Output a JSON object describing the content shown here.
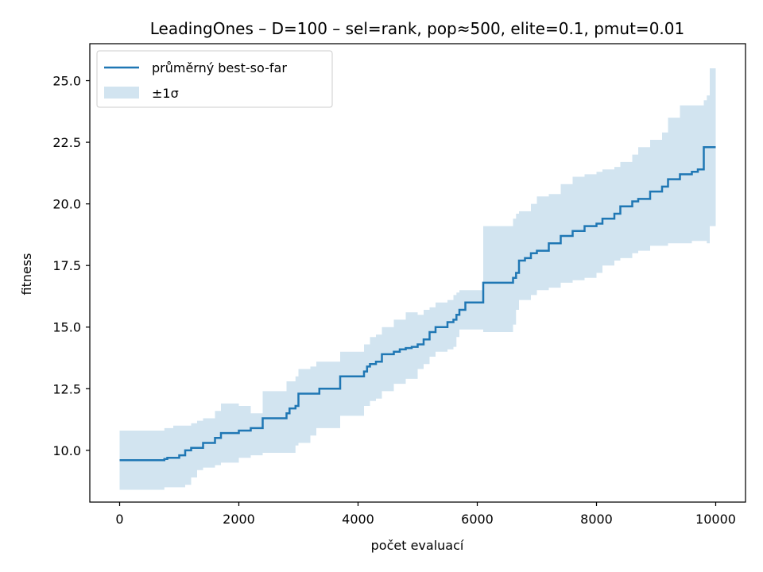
{
  "colors": {
    "line": "#1f77b4",
    "band": "#1f77b4",
    "band_opacity": 0.2,
    "axes": "#000000",
    "background": "#ffffff"
  },
  "chart_data": {
    "type": "line",
    "title": "LeadingOnes – D=100 – sel=rank, pop≈500, elite=0.1, pmut=0.01",
    "xlabel": "počet evaluací",
    "ylabel": "fitness",
    "xlim": [
      -500,
      10500
    ],
    "ylim": [
      7.9,
      26.5
    ],
    "xticks": [
      0,
      2000,
      4000,
      6000,
      8000,
      10000
    ],
    "xtick_labels": [
      "0",
      "2000",
      "4000",
      "6000",
      "8000",
      "10000"
    ],
    "yticks": [
      10.0,
      12.5,
      15.0,
      17.5,
      20.0,
      22.5,
      25.0
    ],
    "ytick_labels": [
      "10.0",
      "12.5",
      "15.0",
      "17.5",
      "20.0",
      "22.5",
      "25.0"
    ],
    "grid": false,
    "legend": {
      "placement": "top-left",
      "entries": [
        {
          "label": "průměrný best-so-far",
          "kind": "line"
        },
        {
          "label": "±1σ",
          "kind": "band"
        }
      ]
    },
    "series": [
      {
        "name": "průměrný best-so-far",
        "step": "post",
        "x": [
          0,
          750,
          800,
          900,
          1000,
          1100,
          1200,
          1300,
          1400,
          1600,
          1700,
          2000,
          2200,
          2400,
          2800,
          2850,
          2950,
          3000,
          3300,
          3350,
          3700,
          4100,
          4150,
          4200,
          4300,
          4400,
          4600,
          4700,
          4800,
          4900,
          5000,
          5100,
          5200,
          5300,
          5500,
          5600,
          5650,
          5700,
          5800,
          6100,
          6600,
          6650,
          6700,
          6800,
          6900,
          7000,
          7200,
          7400,
          7600,
          7800,
          8000,
          8100,
          8300,
          8400,
          8600,
          8700,
          8900,
          9100,
          9200,
          9400,
          9600,
          9700,
          9800,
          9900,
          10000
        ],
        "y": [
          9.6,
          9.65,
          9.7,
          9.7,
          9.8,
          10.0,
          10.1,
          10.1,
          10.3,
          10.5,
          10.7,
          10.8,
          10.9,
          11.3,
          11.5,
          11.7,
          11.8,
          12.3,
          12.3,
          12.5,
          13.0,
          13.2,
          13.4,
          13.5,
          13.6,
          13.9,
          14.0,
          14.1,
          14.15,
          14.2,
          14.3,
          14.5,
          14.8,
          15.0,
          15.2,
          15.3,
          15.5,
          15.7,
          16.0,
          16.8,
          17.0,
          17.2,
          17.7,
          17.8,
          18.0,
          18.1,
          18.4,
          18.7,
          18.9,
          19.1,
          19.2,
          19.4,
          19.6,
          19.9,
          20.1,
          20.2,
          20.5,
          20.7,
          21.0,
          21.2,
          21.3,
          21.4,
          22.3,
          22.3,
          22.3
        ]
      }
    ],
    "band": {
      "name": "±1σ",
      "step": "post",
      "x": [
        0,
        700,
        750,
        900,
        1100,
        1200,
        1300,
        1400,
        1600,
        1700,
        2000,
        2200,
        2400,
        2800,
        2950,
        3000,
        3200,
        3300,
        3700,
        4100,
        4200,
        4300,
        4400,
        4600,
        4800,
        5000,
        5100,
        5200,
        5300,
        5500,
        5600,
        5650,
        5700,
        6050,
        6100,
        6600,
        6650,
        6700,
        6900,
        7000,
        7200,
        7400,
        7600,
        7800,
        8000,
        8100,
        8300,
        8400,
        8600,
        8700,
        8900,
        9100,
        9200,
        9400,
        9600,
        9700,
        9800,
        9850,
        9900,
        10000
      ],
      "lower": [
        8.4,
        8.4,
        8.5,
        8.5,
        8.6,
        8.9,
        9.2,
        9.3,
        9.4,
        9.5,
        9.7,
        9.8,
        9.9,
        9.9,
        10.2,
        10.3,
        10.6,
        10.9,
        11.4,
        11.8,
        12.0,
        12.1,
        12.4,
        12.7,
        12.9,
        13.3,
        13.5,
        13.8,
        14.0,
        14.1,
        14.2,
        14.6,
        14.9,
        14.9,
        14.8,
        15.1,
        15.7,
        16.1,
        16.3,
        16.5,
        16.6,
        16.8,
        16.9,
        17.0,
        17.2,
        17.5,
        17.7,
        17.8,
        18.0,
        18.1,
        18.3,
        18.3,
        18.4,
        18.4,
        18.5,
        18.5,
        18.5,
        18.4,
        19.1,
        19.1
      ],
      "upper": [
        10.8,
        10.8,
        10.9,
        11.0,
        11.0,
        11.1,
        11.2,
        11.3,
        11.6,
        11.9,
        11.8,
        11.5,
        12.4,
        12.8,
        13.0,
        13.3,
        13.4,
        13.6,
        14.0,
        14.3,
        14.6,
        14.7,
        15.0,
        15.3,
        15.6,
        15.5,
        15.7,
        15.8,
        16.0,
        16.1,
        16.3,
        16.4,
        16.5,
        16.5,
        19.1,
        19.4,
        19.6,
        19.7,
        20.0,
        20.3,
        20.4,
        20.8,
        21.1,
        21.2,
        21.3,
        21.4,
        21.5,
        21.7,
        22.0,
        22.3,
        22.6,
        22.9,
        23.5,
        24.0,
        24.0,
        24.0,
        24.2,
        24.4,
        25.5,
        25.5
      ]
    }
  }
}
